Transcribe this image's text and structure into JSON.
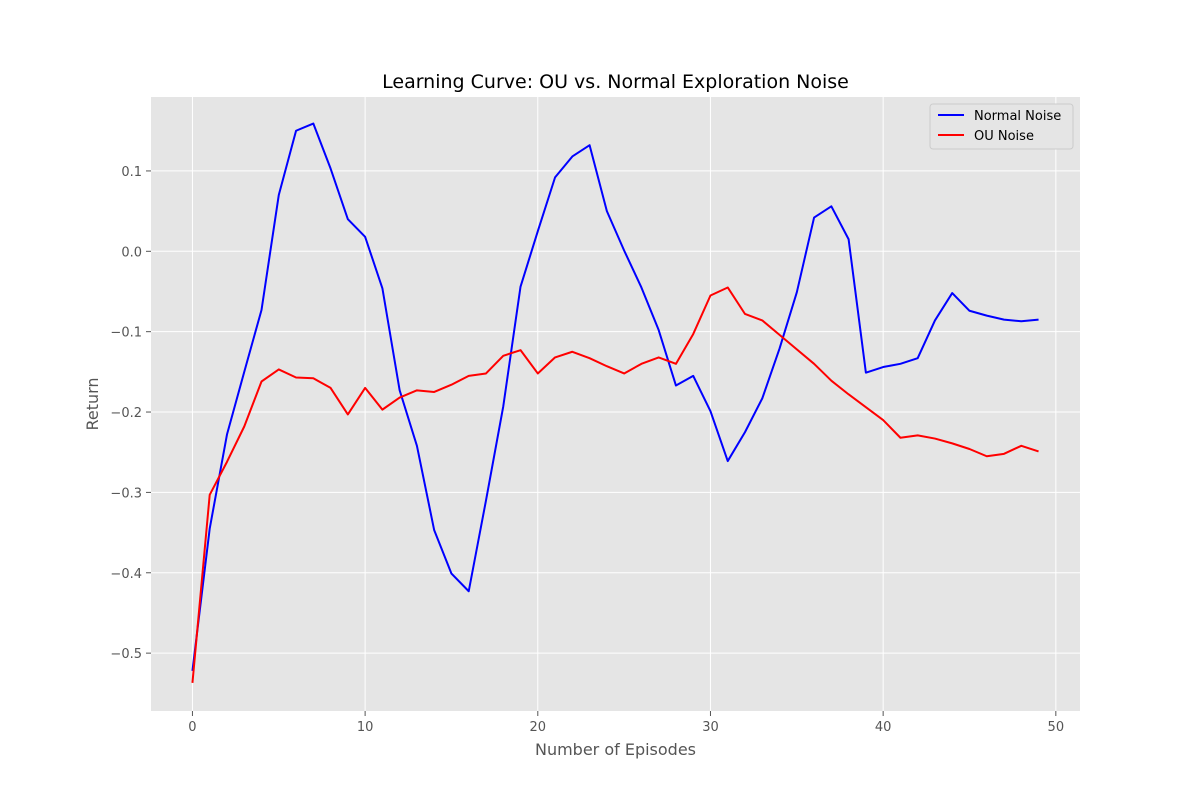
{
  "chart_data": {
    "type": "line",
    "title": "Learning Curve: OU vs. Normal Exploration Noise",
    "xlabel": "Number of Episodes",
    "ylabel": "Return",
    "xlim": [
      -2.4,
      51.4
    ],
    "ylim": [
      -0.572,
      0.192
    ],
    "xticks": [
      0,
      10,
      20,
      30,
      40,
      50
    ],
    "xtick_labels": [
      "0",
      "10",
      "20",
      "30",
      "40",
      "50"
    ],
    "yticks": [
      -0.5,
      -0.4,
      -0.3,
      -0.2,
      -0.1,
      0.0,
      0.1
    ],
    "ytick_labels": [
      "−0.5",
      "−0.4",
      "−0.3",
      "−0.2",
      "−0.1",
      "0.0",
      "0.1"
    ],
    "grid": true,
    "legend_position": "top-right",
    "x": [
      0,
      1,
      2,
      3,
      4,
      5,
      6,
      7,
      8,
      9,
      10,
      11,
      12,
      13,
      14,
      15,
      16,
      17,
      18,
      19,
      20,
      21,
      22,
      23,
      24,
      25,
      26,
      27,
      28,
      29,
      30,
      31,
      32,
      33,
      34,
      35,
      36,
      37,
      38,
      39,
      40,
      41,
      42,
      43,
      44,
      45,
      46,
      47,
      48,
      49
    ],
    "series": [
      {
        "name": "Normal Noise",
        "color": "#0000ff",
        "values": [
          -0.522,
          -0.345,
          -0.228,
          -0.15,
          -0.073,
          0.07,
          0.15,
          0.159,
          0.103,
          0.04,
          0.018,
          -0.046,
          -0.173,
          -0.242,
          -0.347,
          -0.401,
          -0.423,
          -0.31,
          -0.193,
          -0.044,
          0.025,
          0.092,
          0.118,
          0.132,
          0.05,
          0.001,
          -0.045,
          -0.098,
          -0.167,
          -0.155,
          -0.199,
          -0.261,
          -0.225,
          -0.183,
          -0.121,
          -0.051,
          0.042,
          0.056,
          0.015,
          -0.151,
          -0.144,
          -0.14,
          -0.133,
          -0.086,
          -0.052,
          -0.074,
          -0.08,
          -0.085,
          -0.087,
          -0.085
        ]
      },
      {
        "name": "OU Noise",
        "color": "#ff0000",
        "values": [
          -0.537,
          -0.303,
          -0.262,
          -0.218,
          -0.162,
          -0.147,
          -0.157,
          -0.158,
          -0.17,
          -0.203,
          -0.17,
          -0.197,
          -0.182,
          -0.173,
          -0.175,
          -0.166,
          -0.155,
          -0.152,
          -0.13,
          -0.123,
          -0.152,
          -0.132,
          -0.125,
          -0.133,
          -0.143,
          -0.152,
          -0.14,
          -0.132,
          -0.14,
          -0.103,
          -0.055,
          -0.045,
          -0.078,
          -0.086,
          -0.104,
          -0.122,
          -0.14,
          -0.161,
          -0.178,
          -0.194,
          -0.21,
          -0.232,
          -0.229,
          -0.233,
          -0.239,
          -0.246,
          -0.255,
          -0.252,
          -0.242,
          -0.249
        ]
      }
    ]
  }
}
